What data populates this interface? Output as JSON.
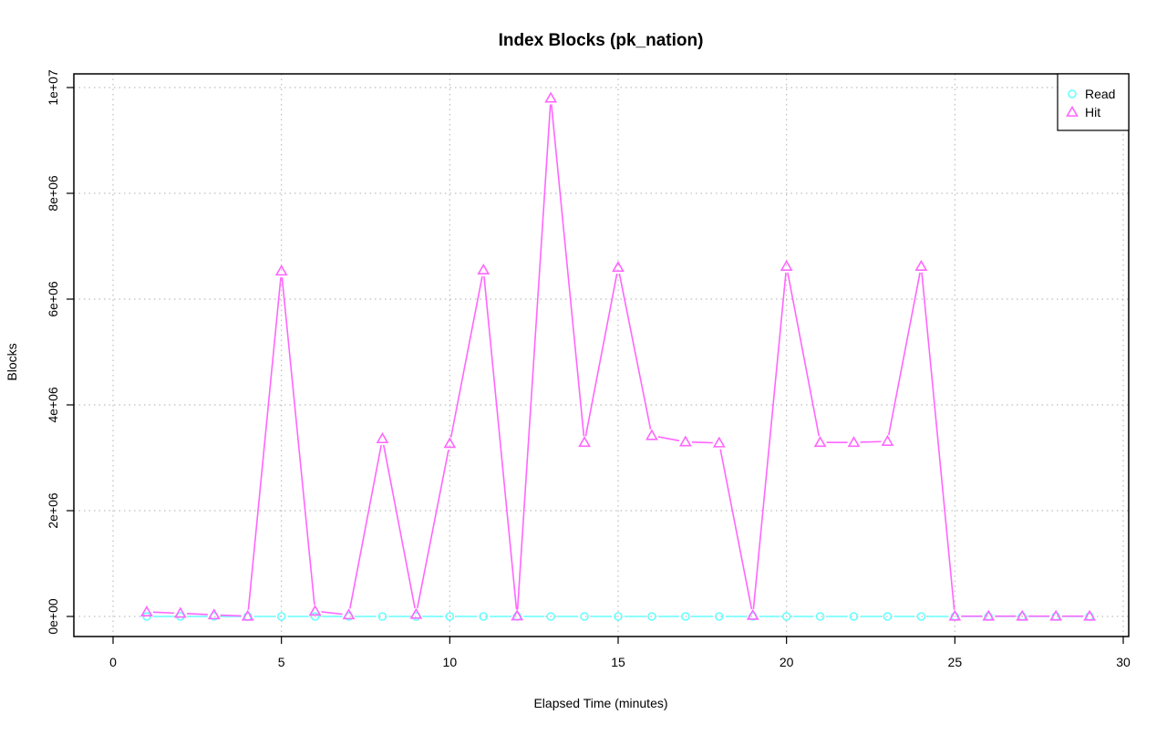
{
  "chart_data": {
    "type": "line",
    "title": "Index Blocks (pk_nation)",
    "xlabel": "Elapsed Time (minutes)",
    "ylabel": "Blocks",
    "xlim": [
      0,
      30
    ],
    "ylim": [
      0,
      10000000
    ],
    "x_ticks": [
      0,
      5,
      10,
      15,
      20,
      25,
      30
    ],
    "x_tick_labels": [
      "0",
      "5",
      "10",
      "15",
      "20",
      "25",
      "30"
    ],
    "y_ticks": [
      0,
      2000000,
      4000000,
      6000000,
      8000000,
      10000000
    ],
    "y_tick_labels": [
      "0e+00",
      "2e+06",
      "4e+06",
      "6e+06",
      "8e+06",
      "1e+07"
    ],
    "grid": true,
    "legend_position": "top-right",
    "x": [
      1,
      2,
      3,
      4,
      5,
      6,
      7,
      8,
      9,
      10,
      11,
      12,
      13,
      14,
      15,
      16,
      17,
      18,
      19,
      20,
      21,
      22,
      23,
      24,
      25,
      26,
      27,
      28,
      29
    ],
    "series": [
      {
        "name": "Read",
        "color": "#66ffff",
        "marker": "circle",
        "values": [
          0,
          0,
          0,
          0,
          0,
          0,
          0,
          0,
          0,
          0,
          0,
          0,
          0,
          0,
          0,
          0,
          0,
          0,
          0,
          0,
          0,
          0,
          0,
          0,
          0,
          0,
          0,
          0,
          0
        ]
      },
      {
        "name": "Hit",
        "color": "#ff66ff",
        "marker": "triangle",
        "values": [
          85000,
          60000,
          30000,
          5000,
          6530000,
          100000,
          30000,
          3360000,
          40000,
          3270000,
          6550000,
          10000,
          9800000,
          3290000,
          6600000,
          3420000,
          3300000,
          3280000,
          20000,
          6620000,
          3290000,
          3290000,
          3310000,
          6620000,
          5000,
          5000,
          5000,
          5000,
          5000
        ]
      }
    ]
  }
}
